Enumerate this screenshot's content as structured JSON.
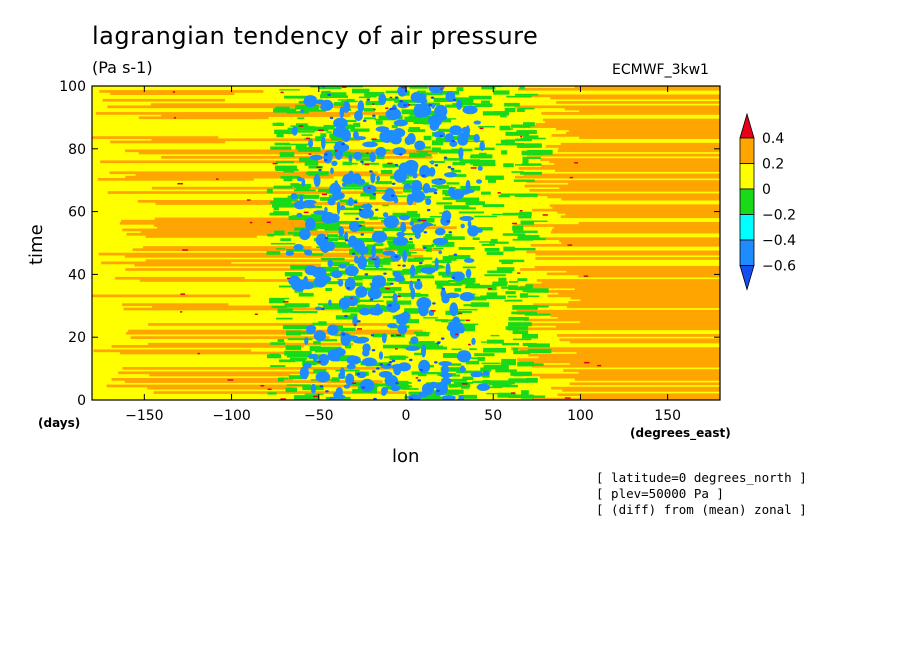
{
  "chart_data": {
    "type": "heatmap",
    "title": "lagrangian tendency of air pressure",
    "units": "(Pa s-1)",
    "source": "ECMWF_3kw1",
    "xlabel": "lon",
    "ylabel": "time",
    "x_unit": "(degrees_east)",
    "y_unit": "(days)",
    "xlim": [
      -180,
      180
    ],
    "ylim": [
      0,
      100
    ],
    "x_ticks": [
      -150,
      -100,
      -50,
      0,
      50,
      100,
      150
    ],
    "x_tick_labels": [
      "-150",
      "-100",
      "-50",
      "0",
      "50",
      "100",
      "150"
    ],
    "y_ticks": [
      0,
      20,
      40,
      60,
      80,
      100
    ],
    "y_tick_labels": [
      "0",
      "20",
      "40",
      "60",
      "80",
      "100"
    ],
    "colorbar": {
      "levels": [
        0.4,
        0.2,
        0,
        -0.2,
        -0.4,
        -0.6
      ],
      "labels": [
        "0.4",
        "0.2",
        "0",
        "−0.2",
        "−0.4",
        "−0.6"
      ],
      "colors": [
        "#e8001a",
        "#ffa500",
        "#ffff00",
        "#19d919",
        "#00ffff",
        "#1e8cff",
        "#1450f0"
      ]
    },
    "notes": [
      "[ latitude=0 degrees_north ]",
      "[ plev=50000 Pa ]",
      "[ (diff) from (mean) zonal ]"
    ]
  }
}
